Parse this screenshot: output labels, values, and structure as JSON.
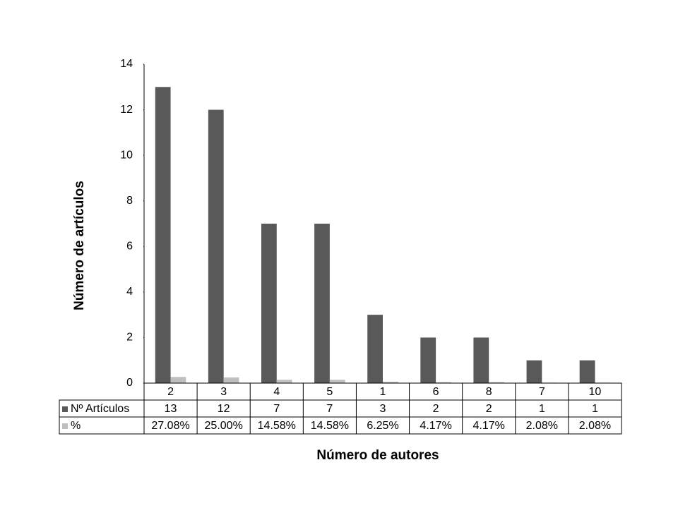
{
  "chart_data": {
    "type": "bar",
    "y_label": "Número de artículos",
    "x_label": "Número de autores",
    "categories": [
      "2",
      "3",
      "4",
      "5",
      "1",
      "6",
      "8",
      "7",
      "10"
    ],
    "series": [
      {
        "name": "Nº Artículos",
        "color": "#595959",
        "values": [
          13,
          12,
          7,
          7,
          3,
          2,
          2,
          1,
          1
        ]
      },
      {
        "name": "%",
        "color": "#bfbfbf",
        "values": [
          0.2708,
          0.25,
          0.1458,
          0.1458,
          0.0625,
          0.0417,
          0.0417,
          0.0208,
          0.0208
        ],
        "value_labels": [
          "27.08%",
          "25.00%",
          "14.58%",
          "14.58%",
          "6.25%",
          "4.17%",
          "4.17%",
          "2.08%",
          "2.08%"
        ]
      }
    ],
    "ylim": [
      0,
      14
    ],
    "yticks": [
      0,
      2,
      4,
      6,
      8,
      10,
      12,
      14
    ],
    "grid": false,
    "data_table": true
  }
}
